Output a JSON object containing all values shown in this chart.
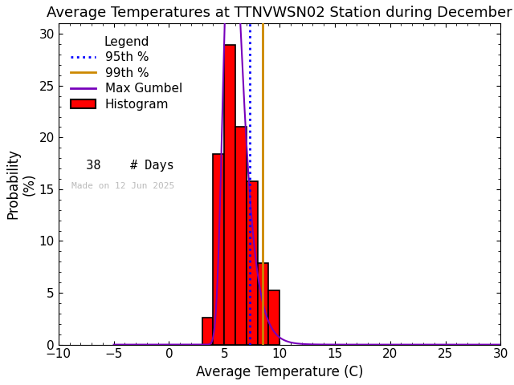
{
  "title": "Average Temperatures at TTNVWSN02 Station during December",
  "xlabel": "Average Temperature (C)",
  "ylabel": "Probability\n(%)",
  "xlim": [
    -10,
    30
  ],
  "ylim": [
    0,
    31
  ],
  "xticks": [
    -10,
    -5,
    0,
    5,
    10,
    15,
    20,
    25,
    30
  ],
  "yticks": [
    0,
    5,
    10,
    15,
    20,
    25,
    30
  ],
  "n_days": 38,
  "bar_left_edges": [
    3.0,
    4.0,
    5.0,
    6.0,
    7.0,
    8.0,
    9.0,
    10.0
  ],
  "bar_heights": [
    2.6315,
    18.4211,
    28.9474,
    21.0526,
    15.7895,
    7.8947,
    5.2632,
    0.0
  ],
  "gumbel_mu": 5.65,
  "gumbel_beta": 0.85,
  "percentile_95": 7.3,
  "percentile_99": 8.5,
  "bar_color": "#ff0000",
  "bar_edgecolor": "#000000",
  "gumbel_color": "#7700bb",
  "p95_color": "#0000ff",
  "p99_color": "#cc8800",
  "background_color": "#ffffff",
  "title_fontsize": 13,
  "axis_fontsize": 12,
  "tick_fontsize": 11,
  "legend_fontsize": 11,
  "watermark": "Made on 12 Jun 2025"
}
